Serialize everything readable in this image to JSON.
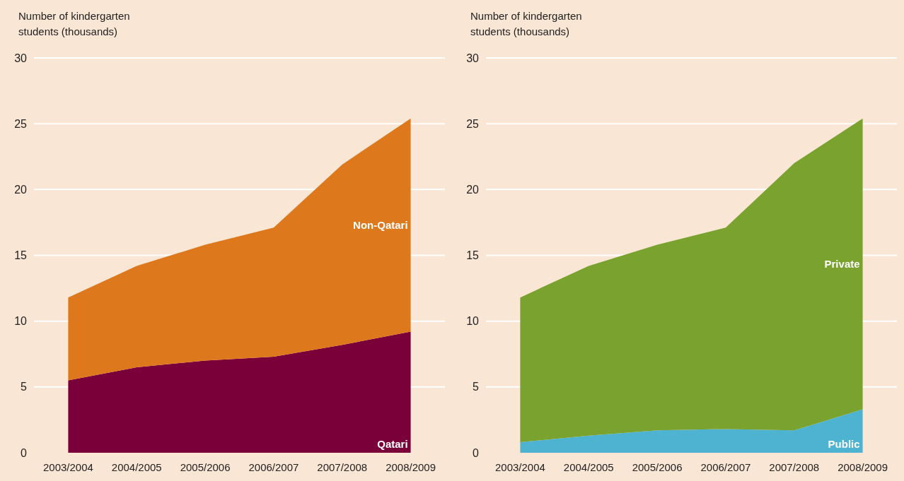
{
  "chart_data": [
    {
      "type": "area",
      "stacked": true,
      "ylabel": "Number of kindergarten students (thousands)",
      "categories": [
        "2003/2004",
        "2004/2005",
        "2005/2006",
        "2006/2007",
        "2007/2008",
        "2008/2009"
      ],
      "ylim": [
        0,
        30
      ],
      "yticks": [
        0,
        5,
        10,
        15,
        20,
        25,
        30
      ],
      "grid": "y",
      "legend": false,
      "series": [
        {
          "name": "Qatari",
          "color": "#7a003a",
          "values": [
            5.5,
            6.5,
            7.0,
            7.3,
            8.2,
            9.2
          ]
        },
        {
          "name": "Non-Qatari",
          "color": "#de781c",
          "values": [
            6.3,
            7.7,
            8.8,
            9.8,
            13.7,
            16.2
          ]
        }
      ]
    },
    {
      "type": "area",
      "stacked": true,
      "ylabel": "Number of kindergarten students (thousands)",
      "categories": [
        "2003/2004",
        "2004/2005",
        "2005/2006",
        "2006/2007",
        "2007/2008",
        "2008/2009"
      ],
      "ylim": [
        0,
        30
      ],
      "yticks": [
        0,
        5,
        10,
        15,
        20,
        25,
        30
      ],
      "grid": "y",
      "legend": false,
      "series": [
        {
          "name": "Public",
          "color": "#4db3d0",
          "values": [
            0.8,
            1.3,
            1.7,
            1.8,
            1.7,
            3.3
          ]
        },
        {
          "name": "Private",
          "color": "#79a22f",
          "values": [
            11.0,
            12.9,
            14.1,
            15.3,
            20.3,
            22.1
          ]
        }
      ]
    }
  ]
}
